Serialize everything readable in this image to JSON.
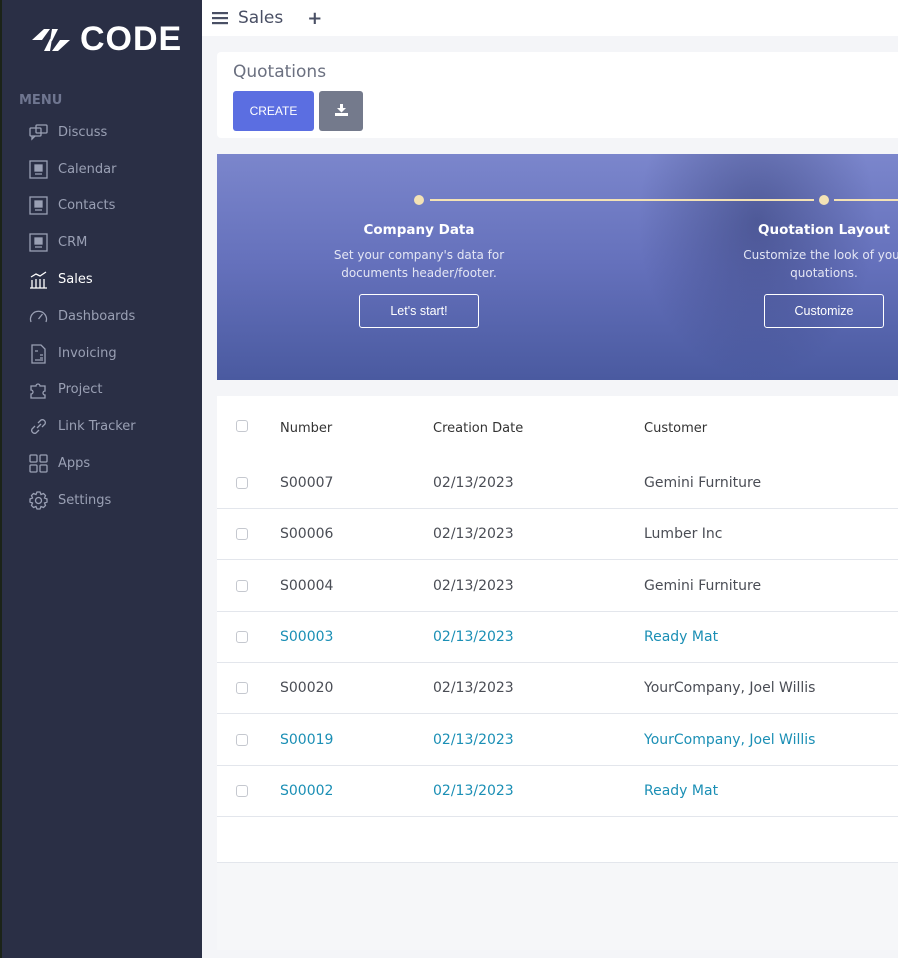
{
  "app": {
    "logo_text": "CODE",
    "module": "Sales"
  },
  "sidebar": {
    "heading": "MENU",
    "items": [
      {
        "label": "Discuss",
        "icon": "chat-icon"
      },
      {
        "label": "Calendar",
        "icon": "app-placeholder-icon"
      },
      {
        "label": "Contacts",
        "icon": "app-placeholder-icon"
      },
      {
        "label": "CRM",
        "icon": "app-placeholder-icon"
      },
      {
        "label": "Sales",
        "icon": "sales-chart-icon",
        "active": true
      },
      {
        "label": "Dashboards",
        "icon": "speedometer-icon"
      },
      {
        "label": "Invoicing",
        "icon": "invoice-icon"
      },
      {
        "label": "Project",
        "icon": "puzzle-icon"
      },
      {
        "label": "Link Tracker",
        "icon": "link-icon"
      },
      {
        "label": "Apps",
        "icon": "grid-icon"
      },
      {
        "label": "Settings",
        "icon": "gear-icon"
      }
    ]
  },
  "page": {
    "title": "Quotations",
    "create_label": "CREATE",
    "download_icon": "download-icon"
  },
  "banner": {
    "steps": [
      {
        "title": "Company Data",
        "desc1": "Set your company's data for",
        "desc2": "documents header/footer.",
        "button": "Let's start!"
      },
      {
        "title": "Quotation Layout",
        "desc1": "Customize the look of your",
        "desc2": "quotations.",
        "button": "Customize"
      }
    ]
  },
  "table": {
    "columns": [
      "Number",
      "Creation Date",
      "Customer"
    ],
    "rows": [
      {
        "number": "S00007",
        "date": "02/13/2023",
        "customer": "Gemini Furniture",
        "highlight": false
      },
      {
        "number": "S00006",
        "date": "02/13/2023",
        "customer": "Lumber Inc",
        "highlight": false
      },
      {
        "number": "S00004",
        "date": "02/13/2023",
        "customer": "Gemini Furniture",
        "highlight": false
      },
      {
        "number": "S00003",
        "date": "02/13/2023",
        "customer": "Ready Mat",
        "highlight": true
      },
      {
        "number": "S00020",
        "date": "02/13/2023",
        "customer": "YourCompany, Joel Willis",
        "highlight": false
      },
      {
        "number": "S00019",
        "date": "02/13/2023",
        "customer": "YourCompany, Joel Willis",
        "highlight": true
      },
      {
        "number": "S00002",
        "date": "02/13/2023",
        "customer": "Ready Mat",
        "highlight": true
      }
    ]
  },
  "colors": {
    "sidebar": "#2a2f45",
    "primary": "#5b6ee1",
    "link": "#1b8fb5"
  }
}
